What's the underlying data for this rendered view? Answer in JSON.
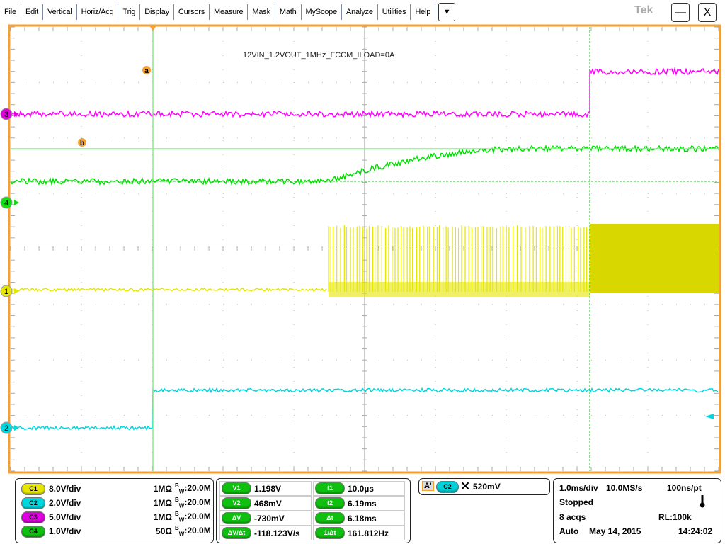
{
  "menu": [
    "File",
    "Edit",
    "Vertical",
    "Horiz/Acq",
    "Trig",
    "Display",
    "Cursors",
    "Measure",
    "Mask",
    "Math",
    "MyScope",
    "Analyze",
    "Utilities",
    "Help"
  ],
  "dropdown_icon": "▼",
  "brand": "Tek",
  "window": {
    "minimize": "—",
    "close": "X"
  },
  "screen": {
    "annotation": "12VIN_1.2VOUT_1MHz_FCCM_ILOAD=0A",
    "cursor_labels": [
      "a",
      "b"
    ],
    "channel_markers": [
      "3",
      "4",
      "1",
      "2"
    ],
    "colors": {
      "c1": "#e6e600",
      "c2": "#00d8e0",
      "c3": "#ff00ff",
      "c4": "#00e000",
      "graticule_border": "#f5a030",
      "cursor": "#80f080"
    }
  },
  "channels": [
    {
      "id": "C1",
      "scale": "8.0V/div",
      "impedance": "1MΩ",
      "bw": "20.0M",
      "color": "#e6e600"
    },
    {
      "id": "C2",
      "scale": "2.0V/div",
      "impedance": "1MΩ",
      "bw": "20.0M",
      "color": "#00d8e0"
    },
    {
      "id": "C3",
      "scale": "5.0V/div",
      "impedance": "1MΩ",
      "bw": "20.0M",
      "color": "#e000e0"
    },
    {
      "id": "C4",
      "scale": "1.0V/div",
      "impedance": "50Ω",
      "bw": "20.0M",
      "color": "#10c010"
    }
  ],
  "bw_label_b": "B",
  "bw_label_w": "W",
  "cursors": {
    "left": [
      {
        "label": "V1",
        "value": "1.198V"
      },
      {
        "label": "V2",
        "value": "468mV"
      },
      {
        "label": "ΔV",
        "value": "-730mV"
      },
      {
        "label": "ΔV/Δt",
        "value": "-118.123V/s"
      }
    ],
    "right": [
      {
        "label": "t1",
        "value": "10.0µs"
      },
      {
        "label": "t2",
        "value": "6.19ms"
      },
      {
        "label": "Δt",
        "value": "6.18ms"
      },
      {
        "label": "1/Δt",
        "value": "161.812Hz"
      }
    ]
  },
  "trigger": {
    "mode_label": "A'",
    "source": "C2",
    "slope_icon": "either-edge-icon",
    "slope_glyph": "⨯",
    "level": "520mV"
  },
  "acquisition": {
    "timebase": "1.0ms/div",
    "sample_rate": "10.0MS/s",
    "resolution": "100ns/pt",
    "state": "Stopped",
    "acqs": "8 acqs",
    "record_length": "RL:100k",
    "trigger_mode": "Auto",
    "date": "May 14, 2015",
    "time": "14:24:02",
    "thermometer_glyph": "🌡"
  }
}
